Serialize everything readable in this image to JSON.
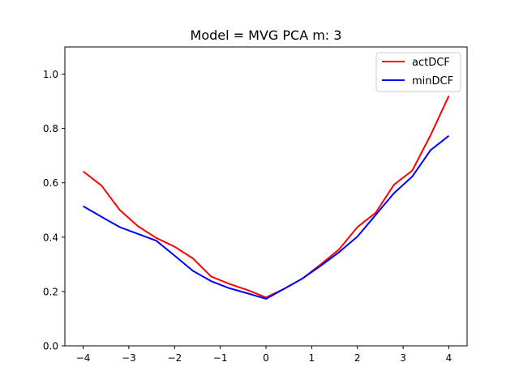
{
  "chart_data": {
    "type": "line",
    "title": "Model = MVG PCA m: 3",
    "xlabel": "",
    "ylabel": "",
    "x": [
      -4.0,
      -3.6,
      -3.2,
      -2.8,
      -2.4,
      -2.0,
      -1.6,
      -1.2,
      -0.8,
      -0.4,
      0.0,
      0.4,
      0.8,
      1.2,
      1.6,
      2.0,
      2.4,
      2.8,
      3.2,
      3.6,
      4.0
    ],
    "series": [
      {
        "name": "actDCF",
        "color": "#ff0000",
        "values": [
          0.642,
          0.59,
          0.5,
          0.44,
          0.397,
          0.365,
          0.322,
          0.255,
          0.228,
          0.205,
          0.178,
          0.21,
          0.248,
          0.3,
          0.355,
          0.437,
          0.49,
          0.593,
          0.645,
          0.775,
          0.92
        ]
      },
      {
        "name": "minDCF",
        "color": "#0000ff",
        "values": [
          0.514,
          0.475,
          0.437,
          0.412,
          0.387,
          0.332,
          0.276,
          0.238,
          0.212,
          0.193,
          0.173,
          0.21,
          0.248,
          0.295,
          0.345,
          0.402,
          0.482,
          0.562,
          0.623,
          0.72,
          0.773
        ]
      }
    ],
    "xlim": [
      -4.4,
      4.4
    ],
    "ylim": [
      0.0,
      1.1
    ],
    "xticks": [
      -4,
      -3,
      -2,
      -1,
      0,
      1,
      2,
      3,
      4
    ],
    "xtick_labels": [
      "−4",
      "−3",
      "−2",
      "−1",
      "0",
      "1",
      "2",
      "3",
      "4"
    ],
    "yticks": [
      0.0,
      0.2,
      0.4,
      0.6,
      0.8,
      1.0
    ],
    "ytick_labels": [
      "0.0",
      "0.2",
      "0.4",
      "0.6",
      "0.8",
      "1.0"
    ],
    "grid": false,
    "legend_position": "top-right"
  }
}
